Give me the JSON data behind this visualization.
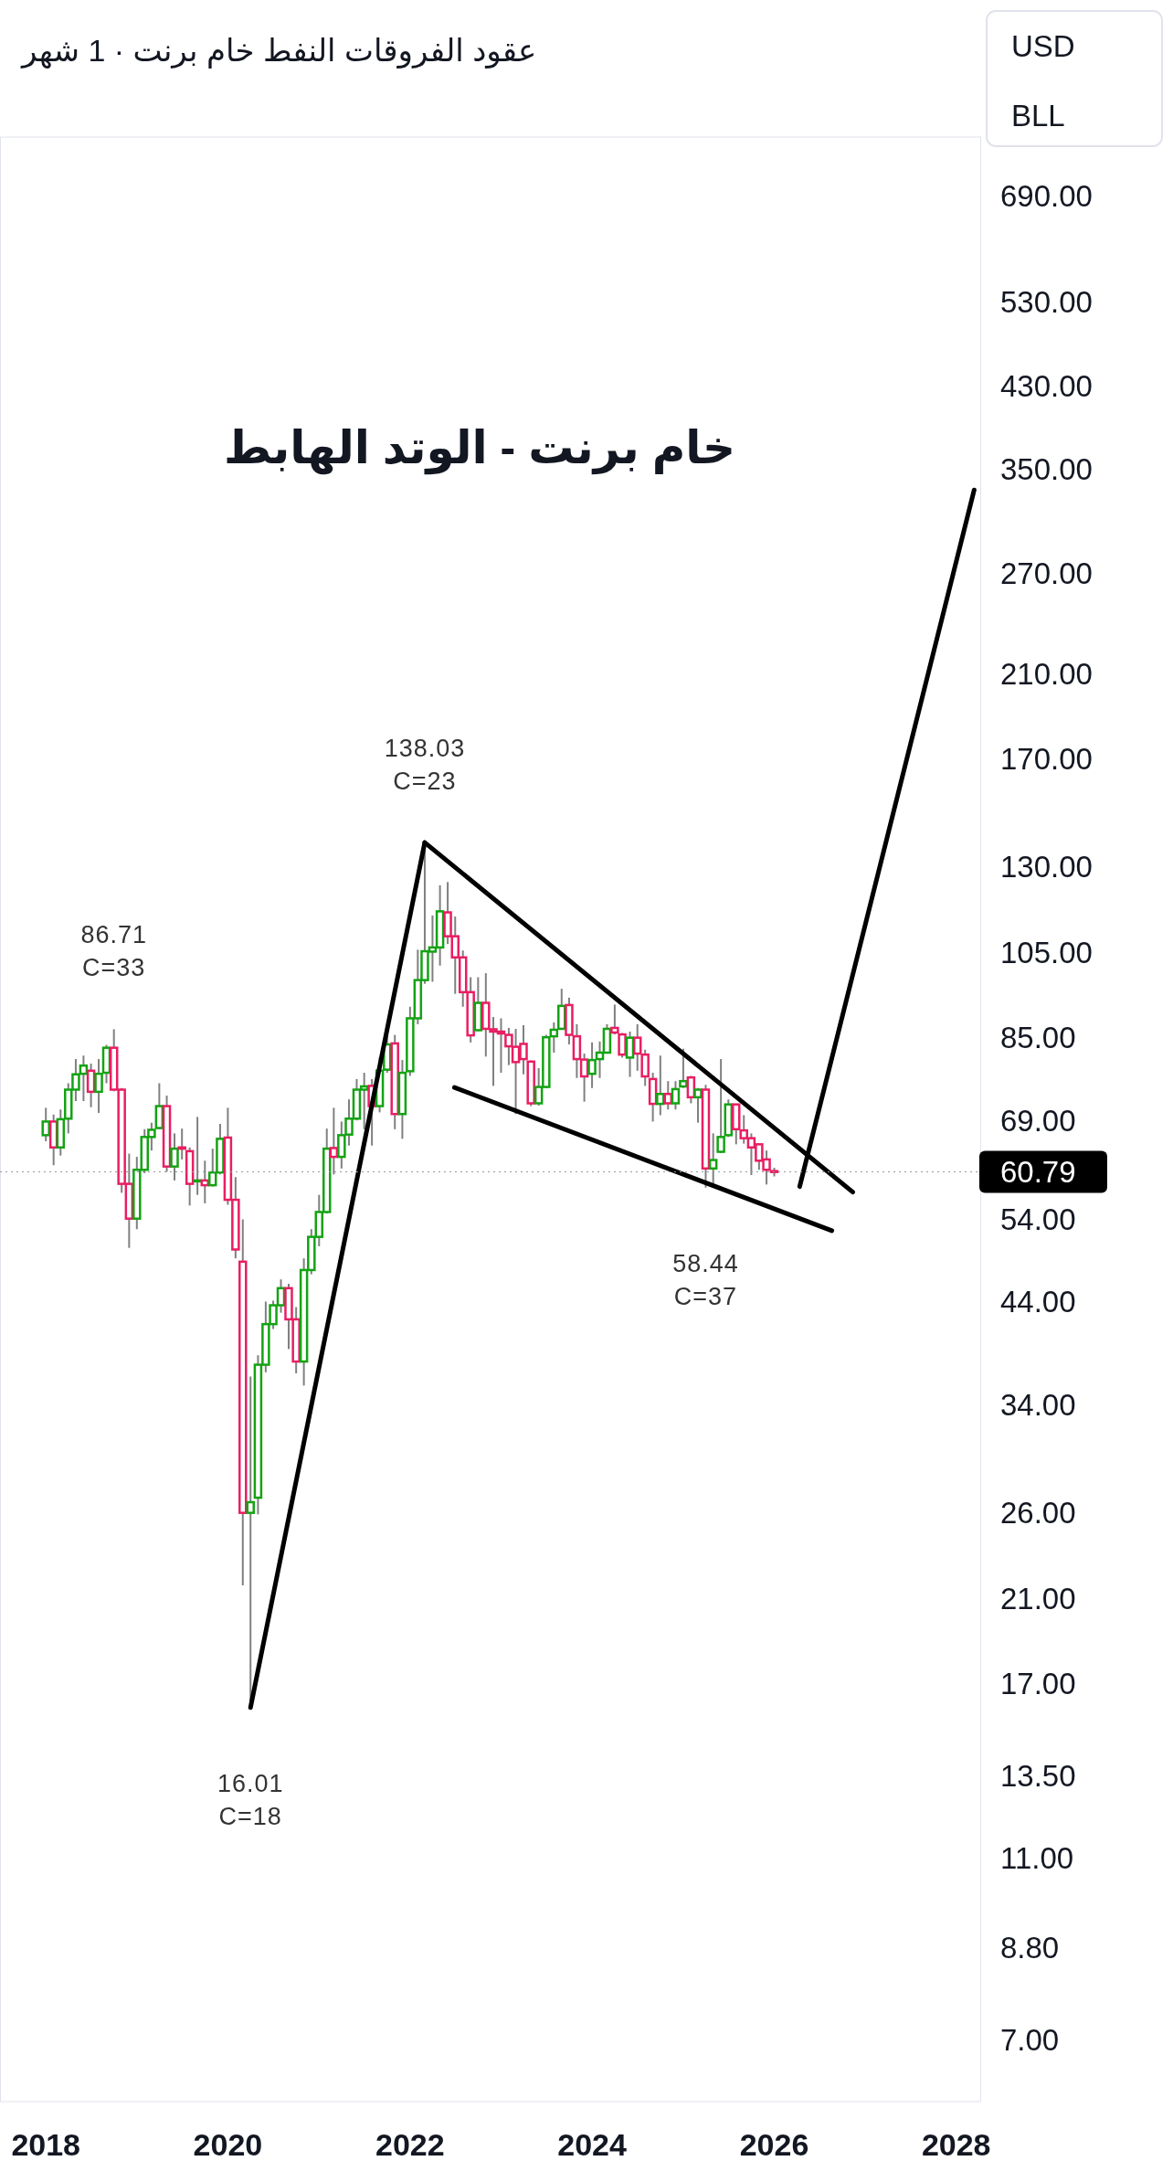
{
  "chart_data": {
    "type": "candlestick",
    "title": "خام برنت - الوتد الهابط",
    "subtitle": "عقود الفروقات النفط خام برنت · 1 شهر",
    "x": [
      "2018-01",
      "2018-02",
      "2018-03",
      "2018-04",
      "2018-05",
      "2018-06",
      "2018-07",
      "2018-08",
      "2018-09",
      "2018-10",
      "2018-11",
      "2018-12",
      "2019-01",
      "2019-02",
      "2019-03",
      "2019-04",
      "2019-05",
      "2019-06",
      "2019-07",
      "2019-08",
      "2019-09",
      "2019-10",
      "2019-11",
      "2019-12",
      "2020-01",
      "2020-02",
      "2020-03",
      "2020-04",
      "2020-05",
      "2020-06",
      "2020-07",
      "2020-08",
      "2020-09",
      "2020-10",
      "2020-11",
      "2020-12",
      "2021-01",
      "2021-02",
      "2021-03",
      "2021-04",
      "2021-05",
      "2021-06",
      "2021-07",
      "2021-08",
      "2021-09",
      "2021-10",
      "2021-11",
      "2021-12",
      "2022-01",
      "2022-02",
      "2022-03",
      "2022-04",
      "2022-05",
      "2022-06",
      "2022-07",
      "2022-08",
      "2022-09",
      "2022-10",
      "2022-11",
      "2022-12",
      "2023-01",
      "2023-02",
      "2023-03",
      "2023-04",
      "2023-05",
      "2023-06",
      "2023-07",
      "2023-08",
      "2023-09",
      "2023-10",
      "2023-11",
      "2023-12",
      "2024-01",
      "2024-02",
      "2024-03",
      "2024-04",
      "2024-05",
      "2024-06",
      "2024-07",
      "2024-08",
      "2024-09",
      "2024-10",
      "2024-11",
      "2024-12",
      "2025-01",
      "2025-02",
      "2025-03",
      "2025-04",
      "2025-05",
      "2025-06",
      "2025-07",
      "2025-08",
      "2025-09",
      "2025-10",
      "2025-11",
      "2025-12",
      "2026-01"
    ],
    "ohlc": [
      [
        66.6,
        71.3,
        65.6,
        68.9
      ],
      [
        68.9,
        70.1,
        61.8,
        64.6
      ],
      [
        64.6,
        71.0,
        63.3,
        69.3
      ],
      [
        69.4,
        75.8,
        66.9,
        74.6
      ],
      [
        74.6,
        80.5,
        72.5,
        77.5
      ],
      [
        77.6,
        81.2,
        72.5,
        79.2
      ],
      [
        78.2,
        79.6,
        71.4,
        74.2
      ],
      [
        74.2,
        80.5,
        70.4,
        77.6
      ],
      [
        77.8,
        83.4,
        75.8,
        82.8
      ],
      [
        82.8,
        86.71,
        74.3,
        74.6
      ],
      [
        74.6,
        74.9,
        57.7,
        59.0
      ],
      [
        59.0,
        63.6,
        50.3,
        54.1
      ],
      [
        54.1,
        63.1,
        52.7,
        61.1
      ],
      [
        61.1,
        67.6,
        60.6,
        66.3
      ],
      [
        66.3,
        68.7,
        64.1,
        67.5
      ],
      [
        67.8,
        75.8,
        67.6,
        71.6
      ],
      [
        71.6,
        73.5,
        60.8,
        61.6
      ],
      [
        61.6,
        66.9,
        59.5,
        64.4
      ],
      [
        64.6,
        67.7,
        62.7,
        64.4
      ],
      [
        64.0,
        64.6,
        55.9,
        59.0
      ],
      [
        59.4,
        69.7,
        57.4,
        59.5
      ],
      [
        59.5,
        62.5,
        56.2,
        58.8
      ],
      [
        58.8,
        64.4,
        58.6,
        60.7
      ],
      [
        60.7,
        68.5,
        60.4,
        66.0
      ],
      [
        66.2,
        71.3,
        56.0,
        56.7
      ],
      [
        56.7,
        60.0,
        49.0,
        50.1
      ],
      [
        48.6,
        54.0,
        21.7,
        26.0
      ],
      [
        26.0,
        36.5,
        16.01,
        26.7
      ],
      [
        27.0,
        38.5,
        25.9,
        37.6
      ],
      [
        37.6,
        44.0,
        36.9,
        41.6
      ],
      [
        41.6,
        44.1,
        41.1,
        43.6
      ],
      [
        43.6,
        46.5,
        42.8,
        45.5
      ],
      [
        45.5,
        46.0,
        39.1,
        42.1
      ],
      [
        42.1,
        43.4,
        36.8,
        37.9
      ],
      [
        37.9,
        49.0,
        35.7,
        47.6
      ],
      [
        47.6,
        52.7,
        47.1,
        51.7
      ],
      [
        51.7,
        57.4,
        50.5,
        55.0
      ],
      [
        55.0,
        67.7,
        54.8,
        64.4
      ],
      [
        64.5,
        71.3,
        60.4,
        63.1
      ],
      [
        63.1,
        68.9,
        61.3,
        66.6
      ],
      [
        66.7,
        72.8,
        64.9,
        69.4
      ],
      [
        69.4,
        76.6,
        69.1,
        74.6
      ],
      [
        74.6,
        77.8,
        67.6,
        75.2
      ],
      [
        75.3,
        76.6,
        64.9,
        71.6
      ],
      [
        71.6,
        80.8,
        70.5,
        78.2
      ],
      [
        78.4,
        86.7,
        77.8,
        83.5
      ],
      [
        83.7,
        85.5,
        67.6,
        70.2
      ],
      [
        70.2,
        80.3,
        66.0,
        77.8
      ],
      [
        78.1,
        91.7,
        77.2,
        89.1
      ],
      [
        89.1,
        105.7,
        87.8,
        98.0
      ],
      [
        98.0,
        138.03,
        97.1,
        105.3
      ],
      [
        105.2,
        115.1,
        97.6,
        106.3
      ],
      [
        106.3,
        124.1,
        101.6,
        116.3
      ],
      [
        116.0,
        125.1,
        107.2,
        109.3
      ],
      [
        109.3,
        114.8,
        94.7,
        103.7
      ],
      [
        103.7,
        105.5,
        91.7,
        95.1
      ],
      [
        95.1,
        98.7,
        83.9,
        85.4
      ],
      [
        86.5,
        98.7,
        86.3,
        92.6
      ],
      [
        92.6,
        99.7,
        81.0,
        86.8
      ],
      [
        86.7,
        89.4,
        75.3,
        86.2
      ],
      [
        86.2,
        89.1,
        77.8,
        85.8
      ],
      [
        85.5,
        87.0,
        79.3,
        83.1
      ],
      [
        83.0,
        86.8,
        70.2,
        79.9
      ],
      [
        83.6,
        87.6,
        77.5,
        80.5
      ],
      [
        80.0,
        80.2,
        71.6,
        72.1
      ],
      [
        72.1,
        78.7,
        71.7,
        75.1
      ],
      [
        75.1,
        85.5,
        74.9,
        85.0
      ],
      [
        85.2,
        88.2,
        81.8,
        86.6
      ],
      [
        86.8,
        95.9,
        86.7,
        91.9
      ],
      [
        92.1,
        93.8,
        83.5,
        85.5
      ],
      [
        85.2,
        87.8,
        76.8,
        80.5
      ],
      [
        80.4,
        81.6,
        72.4,
        77.1
      ],
      [
        77.6,
        83.9,
        74.9,
        80.3
      ],
      [
        80.5,
        84.1,
        76.8,
        81.8
      ],
      [
        81.8,
        87.8,
        81.6,
        86.8
      ],
      [
        87.0,
        92.2,
        85.6,
        86.0
      ],
      [
        85.6,
        85.9,
        80.8,
        81.4
      ],
      [
        80.8,
        86.2,
        77.0,
        84.9
      ],
      [
        84.9,
        87.8,
        78.2,
        81.6
      ],
      [
        81.4,
        82.4,
        75.3,
        77.1
      ],
      [
        76.6,
        77.8,
        68.9,
        72.0
      ],
      [
        72.0,
        81.2,
        70.0,
        73.8
      ],
      [
        73.8,
        76.2,
        71.0,
        72.1
      ],
      [
        72.1,
        76.2,
        71.0,
        74.7
      ],
      [
        75.2,
        82.6,
        74.9,
        76.2
      ],
      [
        76.9,
        77.2,
        72.1,
        73.2
      ],
      [
        73.2,
        74.9,
        68.7,
        74.6
      ],
      [
        74.6,
        75.5,
        58.44,
        61.3
      ],
      [
        61.3,
        66.9,
        58.9,
        62.6
      ],
      [
        63.9,
        80.5,
        63.7,
        66.3
      ],
      [
        66.6,
        72.8,
        66.3,
        71.9
      ],
      [
        71.9,
        71.9,
        65.1,
        67.6
      ],
      [
        67.4,
        70.0,
        65.2,
        66.1
      ],
      [
        66.1,
        66.9,
        60.3,
        64.6
      ],
      [
        65.1,
        65.3,
        61.1,
        62.5
      ],
      [
        62.7,
        64.1,
        58.9,
        61.1
      ],
      [
        60.9,
        61.4,
        60.1,
        60.79
      ]
    ],
    "colors": [
      "#13a313",
      "#e91e63",
      "#13a313",
      "#13a313",
      "#13a313",
      "#13a313",
      "#e91e63",
      "#13a313",
      "#13a313",
      "#e91e63",
      "#e91e63",
      "#e91e63",
      "#13a313",
      "#13a313",
      "#13a313",
      "#13a313",
      "#e91e63",
      "#13a313",
      "#e91e63",
      "#e91e63",
      "#13a313",
      "#e91e63",
      "#13a313",
      "#13a313",
      "#e91e63",
      "#e91e63",
      "#e91e63",
      "#13a313",
      "#13a313",
      "#13a313",
      "#13a313",
      "#13a313",
      "#e91e63",
      "#e91e63",
      "#13a313",
      "#13a313",
      "#13a313",
      "#13a313",
      "#e91e63",
      "#13a313",
      "#13a313",
      "#13a313",
      "#13a313",
      "#e91e63",
      "#13a313",
      "#13a313",
      "#e91e63",
      "#13a313",
      "#13a313",
      "#13a313",
      "#13a313",
      "#13a313",
      "#13a313",
      "#e91e63",
      "#e91e63",
      "#e91e63",
      "#e91e63",
      "#13a313",
      "#e91e63",
      "#e91e63",
      "#e91e63",
      "#e91e63",
      "#e91e63",
      "#e91e63",
      "#e91e63",
      "#13a313",
      "#13a313",
      "#13a313",
      "#13a313",
      "#e91e63",
      "#e91e63",
      "#e91e63",
      "#13a313",
      "#13a313",
      "#13a313",
      "#e91e63",
      "#e91e63",
      "#13a313",
      "#e91e63",
      "#e91e63",
      "#e91e63",
      "#13a313",
      "#e91e63",
      "#13a313",
      "#13a313",
      "#e91e63",
      "#13a313",
      "#e91e63",
      "#13a313",
      "#13a313",
      "#13a313",
      "#e91e63",
      "#e91e63",
      "#e91e63",
      "#e91e63",
      "#e91e63",
      "#e91e63"
    ],
    "series": [
      {
        "type": "line",
        "color": "#000000",
        "x": [
          "2020-04",
          "2022-03"
        ],
        "values": [
          16.01,
          138.03
        ]
      },
      {
        "type": "line",
        "color": "#000000",
        "x": [
          "2022-03",
          "2026-11-12"
        ],
        "values": [
          138.03,
          57.8
        ]
      },
      {
        "type": "line",
        "color": "#000000",
        "x": [
          "2022-06-28",
          "2026-08-20"
        ],
        "values": [
          75.0,
          52.5
        ]
      },
      {
        "type": "line",
        "color": "#000000",
        "x": [
          "2026-04-13",
          "2028-03-13"
        ],
        "values": [
          58.6,
          332.2
        ]
      }
    ],
    "xlim": [
      "2017-07-01",
      "2028-04-10"
    ],
    "xticks": [
      "2018",
      "2020",
      "2022",
      "2024",
      "2026",
      "2028"
    ],
    "log": true,
    "ylim": [
      6,
      800
    ],
    "yticks": [
      {
        "value": 690,
        "label": "690.00"
      },
      {
        "value": 530,
        "label": "530.00"
      },
      {
        "value": 430,
        "label": "430.00"
      },
      {
        "value": 350,
        "label": "350.00"
      },
      {
        "value": 270,
        "label": "270.00"
      },
      {
        "value": 210,
        "label": "210.00"
      },
      {
        "value": 170,
        "label": "170.00"
      },
      {
        "value": 130,
        "label": "130.00"
      },
      {
        "value": 105,
        "label": "105.00"
      },
      {
        "value": 85,
        "label": "85.00"
      },
      {
        "value": 69,
        "label": "69.00"
      },
      {
        "value": 54,
        "label": "54.00"
      },
      {
        "value": 44,
        "label": "44.00"
      },
      {
        "value": 34,
        "label": "34.00"
      },
      {
        "value": 26,
        "label": "26.00"
      },
      {
        "value": 21,
        "label": "21.00"
      },
      {
        "value": 17,
        "label": "17.00"
      },
      {
        "value": 13.5,
        "label": "13.50"
      },
      {
        "value": 11,
        "label": "11.00"
      },
      {
        "value": 8.8,
        "label": "8.80"
      },
      {
        "value": 7,
        "label": "7.00"
      }
    ],
    "ref_lines": [
      {
        "axis": "y",
        "value": 60.79,
        "label": "60.79"
      }
    ],
    "annotations": [
      {
        "text": "86.71\nC=33",
        "x": "2018-10",
        "y": 86.71
      },
      {
        "text": "138.03\nC=23",
        "x": "2022-03",
        "y": 138.03
      },
      {
        "text": "16.01\nC=18",
        "x": "2020-04",
        "y": 16.01
      },
      {
        "text": "58.44\nC=37",
        "x": "2025-04",
        "y": 58.44
      },
      "USD",
      "BLL"
    ]
  }
}
